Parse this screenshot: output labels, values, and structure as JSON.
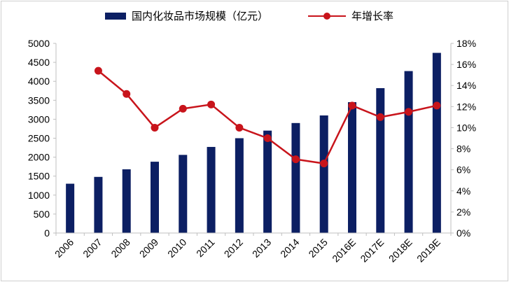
{
  "chart_data": {
    "type": "bar",
    "categories": [
      "2006",
      "2007",
      "2008",
      "2009",
      "2010",
      "2011",
      "2012",
      "2013",
      "2014",
      "2015",
      "2016E",
      "2017E",
      "2018E",
      "2019E"
    ],
    "series": [
      {
        "name": "国内化妆品市场规模（亿元）",
        "type": "bar",
        "axis": "left",
        "color": "#0c1f63",
        "values": [
          1300,
          1480,
          1680,
          1880,
          2060,
          2270,
          2500,
          2700,
          2900,
          3100,
          3450,
          3820,
          4270,
          4750
        ]
      },
      {
        "name": "年增长率",
        "type": "line",
        "axis": "right",
        "color": "#c8141b",
        "values": [
          null,
          15.4,
          13.2,
          10.0,
          11.8,
          12.2,
          10.0,
          9.0,
          7.0,
          6.6,
          12.1,
          11.0,
          11.5,
          12.1
        ]
      }
    ],
    "y_left": {
      "ylim": [
        0,
        5000
      ],
      "ticks": [
        "0",
        "500",
        "1000",
        "1500",
        "2000",
        "2500",
        "3000",
        "3500",
        "4000",
        "4500",
        "5000"
      ]
    },
    "y_right": {
      "ylim": [
        0,
        18
      ],
      "ticks": [
        "0%",
        "2%",
        "4%",
        "6%",
        "8%",
        "10%",
        "12%",
        "14%",
        "16%",
        "18%"
      ]
    },
    "legend": {
      "position": "top",
      "items": [
        {
          "label": "国内化妆品市场规模（亿元）",
          "kind": "bar",
          "color": "#0c1f63"
        },
        {
          "label": "年增长率",
          "kind": "line-marker",
          "color": "#c8141b"
        }
      ]
    },
    "grid": false
  }
}
